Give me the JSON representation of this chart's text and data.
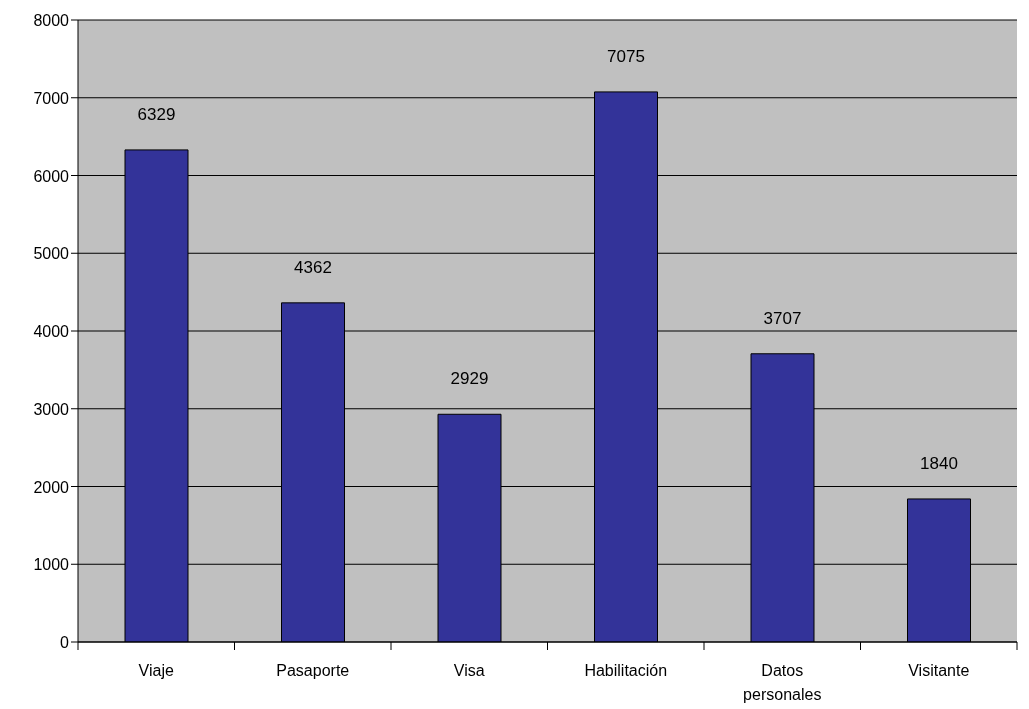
{
  "chart_data": {
    "type": "bar",
    "categories": [
      "Viaje",
      "Pasaporte",
      "Visa",
      "Habilitación",
      "Datos personales",
      "Visitante"
    ],
    "values": [
      6329,
      4362,
      2929,
      7075,
      3707,
      1840
    ],
    "color": "#333399",
    "ylim": [
      0,
      8000
    ],
    "yticks": [
      0,
      1000,
      2000,
      3000,
      4000,
      5000,
      6000,
      7000,
      8000
    ],
    "grid": "y",
    "data_labels": true
  }
}
